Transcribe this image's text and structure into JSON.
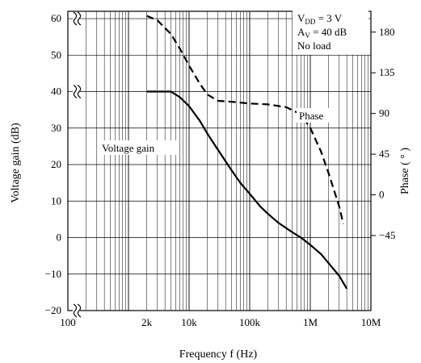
{
  "chart_data": {
    "type": "line",
    "xlabel": "Frequency  f  (Hz)",
    "ylabel": "Voltage gain  (dB)",
    "y2label": "Phase  ( ° )",
    "x_scale": "log",
    "xlim": [
      100,
      10000000
    ],
    "ylim": [
      -20,
      62
    ],
    "y2lim": [
      -128,
      203
    ],
    "grid": true,
    "x_ticks": [
      {
        "value": 100,
        "label": "100"
      },
      {
        "value": 2000,
        "label": "2k"
      },
      {
        "value": 10000,
        "label": "10k"
      },
      {
        "value": 100000,
        "label": "100k"
      },
      {
        "value": 1000000,
        "label": "1M"
      },
      {
        "value": 10000000,
        "label": "10M"
      }
    ],
    "y_ticks": [
      {
        "value": 60,
        "label": "60"
      },
      {
        "value": 50,
        "label": "50"
      },
      {
        "value": 40,
        "label": "40"
      },
      {
        "value": 30,
        "label": "30"
      },
      {
        "value": 20,
        "label": "20"
      },
      {
        "value": 10,
        "label": "10"
      },
      {
        "value": 0,
        "label": "0"
      },
      {
        "value": -10,
        "label": "−10"
      },
      {
        "value": -20,
        "label": "−20"
      }
    ],
    "y2_ticks": [
      {
        "value": 180,
        "label": "180"
      },
      {
        "value": 135,
        "label": "135"
      },
      {
        "value": 90,
        "label": "90"
      },
      {
        "value": 45,
        "label": "45"
      },
      {
        "value": 0,
        "label": "0"
      },
      {
        "value": -45,
        "label": "−45"
      }
    ],
    "conditions": {
      "vdd_main": "V",
      "vdd_sub": "DD",
      "vdd_value": " = 3 V",
      "av_main": "A",
      "av_sub": "V",
      "av_value": " = 40 dB",
      "load": "No load"
    },
    "series": [
      {
        "name": "Voltage gain",
        "axis": "left",
        "style": "solid",
        "x": [
          2000,
          3000,
          5000,
          7000,
          10000,
          15000,
          20000,
          30000,
          50000,
          70000,
          100000,
          150000,
          200000,
          300000,
          500000,
          700000,
          1000000,
          1500000,
          2000000,
          3000000,
          4000000
        ],
        "y": [
          40,
          40,
          40,
          38.5,
          36,
          32,
          28.5,
          24,
          18.5,
          15,
          12,
          8.5,
          6.5,
          4,
          1.5,
          0,
          -2,
          -4.5,
          -7,
          -10.5,
          -14
        ]
      },
      {
        "name": "Phase",
        "axis": "right",
        "style": "dashed",
        "x": [
          2000,
          3000,
          5000,
          7000,
          10000,
          15000,
          20000,
          30000,
          50000,
          100000,
          200000,
          400000,
          700000,
          1000000,
          1500000,
          2000000,
          3000000,
          3500000
        ],
        "y": [
          198,
          193,
          178,
          162,
          143,
          123,
          111,
          104,
          103,
          101,
          100,
          97,
          89,
          74,
          48,
          24,
          -13,
          -32
        ]
      }
    ]
  }
}
